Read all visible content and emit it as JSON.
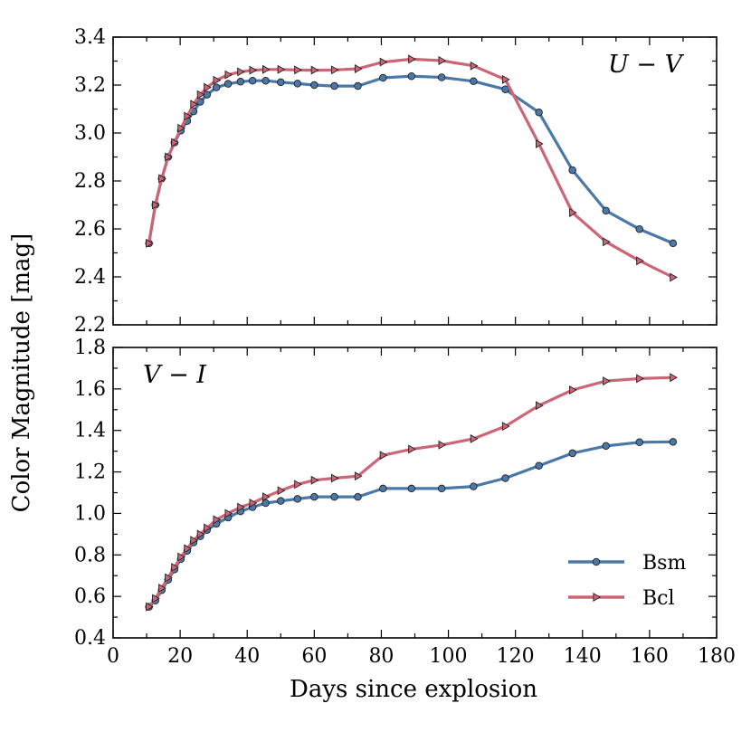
{
  "chart_data": {
    "type": "line",
    "ylabel": "Color Magnitude [mag]",
    "xlabel": "Days since explosion",
    "xlim": [
      0,
      180
    ],
    "x_ticks": [
      0,
      20,
      40,
      60,
      80,
      100,
      120,
      140,
      160,
      180
    ],
    "legend": {
      "placement": "lower-right",
      "entries": [
        "Bsm",
        "Bcl"
      ]
    },
    "grid": false,
    "colors": {
      "Bsm": "#4a78a8",
      "Bcl": "#cc6677"
    },
    "panels": [
      {
        "label": "U − V",
        "label_placement": "top-right",
        "ylim": [
          2.2,
          3.4
        ],
        "y_ticks": [
          2.2,
          2.4,
          2.6,
          2.8,
          3.0,
          3.2,
          3.4
        ],
        "series": [
          {
            "name": "Bsm",
            "marker": "circle",
            "x": [
              10.7,
              12.6,
              14.5,
              16.4,
              18.3,
              20.2,
              22.1,
              24.0,
              26.0,
              28.0,
              30.8,
              34.3,
              38.0,
              41.6,
              45.5,
              50.0,
              55.0,
              60.0,
              66.0,
              73.0,
              80.5,
              89.0,
              98.0,
              107.5,
              117.0,
              127.0,
              137.0,
              147.0,
              157.0,
              167.0
            ],
            "y": [
              2.54,
              2.7,
              2.81,
              2.9,
              2.96,
              3.01,
              3.05,
              3.09,
              3.13,
              3.16,
              3.19,
              3.205,
              3.214,
              3.218,
              3.218,
              3.212,
              3.206,
              3.2,
              3.196,
              3.196,
              3.23,
              3.237,
              3.232,
              3.216,
              3.182,
              3.086,
              2.845,
              2.676,
              2.599,
              2.54
            ]
          },
          {
            "name": "Bcl",
            "marker": "triangle-right",
            "x": [
              10.7,
              12.6,
              14.5,
              16.4,
              18.3,
              20.2,
              22.1,
              24.0,
              26.0,
              28.0,
              30.8,
              34.3,
              38.0,
              41.6,
              45.5,
              50.0,
              55.0,
              60.0,
              66.0,
              73.0,
              80.5,
              89.0,
              98.0,
              107.5,
              117.0,
              127.0,
              137.0,
              147.0,
              157.0,
              167.0
            ],
            "y": [
              2.54,
              2.7,
              2.81,
              2.9,
              2.96,
              3.02,
              3.07,
              3.12,
              3.16,
              3.19,
              3.22,
              3.243,
              3.255,
              3.262,
              3.265,
              3.265,
              3.263,
              3.262,
              3.263,
              3.268,
              3.296,
              3.308,
              3.302,
              3.28,
              3.223,
              2.955,
              2.668,
              2.546,
              2.467,
              2.398
            ]
          }
        ]
      },
      {
        "label": "V − I",
        "label_placement": "top-left",
        "ylim": [
          0.4,
          1.8
        ],
        "y_ticks": [
          0.4,
          0.6,
          0.8,
          1.0,
          1.2,
          1.4,
          1.6,
          1.8
        ],
        "series": [
          {
            "name": "Bsm",
            "marker": "circle",
            "x": [
              10.7,
              12.6,
              14.5,
              16.4,
              18.3,
              20.2,
              22.1,
              24.0,
              26.0,
              28.0,
              30.8,
              34.3,
              38.0,
              41.6,
              45.5,
              50.0,
              55.0,
              60.0,
              66.0,
              73.0,
              80.5,
              89.0,
              98.0,
              107.5,
              117.0,
              127.0,
              137.0,
              147.0,
              157.0,
              167.0
            ],
            "y": [
              0.55,
              0.58,
              0.63,
              0.68,
              0.73,
              0.78,
              0.82,
              0.86,
              0.89,
              0.92,
              0.95,
              0.98,
              1.01,
              1.03,
              1.05,
              1.06,
              1.07,
              1.08,
              1.08,
              1.08,
              1.12,
              1.12,
              1.12,
              1.13,
              1.17,
              1.23,
              1.29,
              1.325,
              1.343,
              1.345
            ]
          },
          {
            "name": "Bcl",
            "marker": "triangle-right",
            "x": [
              10.7,
              12.6,
              14.5,
              16.4,
              18.3,
              20.2,
              22.1,
              24.0,
              26.0,
              28.0,
              30.8,
              34.3,
              38.0,
              41.6,
              45.5,
              50.0,
              55.0,
              60.0,
              66.0,
              73.0,
              80.5,
              89.0,
              98.0,
              107.5,
              117.0,
              127.0,
              137.0,
              147.0,
              157.0,
              167.0
            ],
            "y": [
              0.55,
              0.59,
              0.64,
              0.69,
              0.74,
              0.79,
              0.83,
              0.87,
              0.9,
              0.93,
              0.97,
              1.0,
              1.03,
              1.05,
              1.08,
              1.11,
              1.14,
              1.16,
              1.17,
              1.18,
              1.28,
              1.31,
              1.33,
              1.36,
              1.42,
              1.52,
              1.595,
              1.638,
              1.65,
              1.655
            ]
          }
        ]
      }
    ]
  }
}
